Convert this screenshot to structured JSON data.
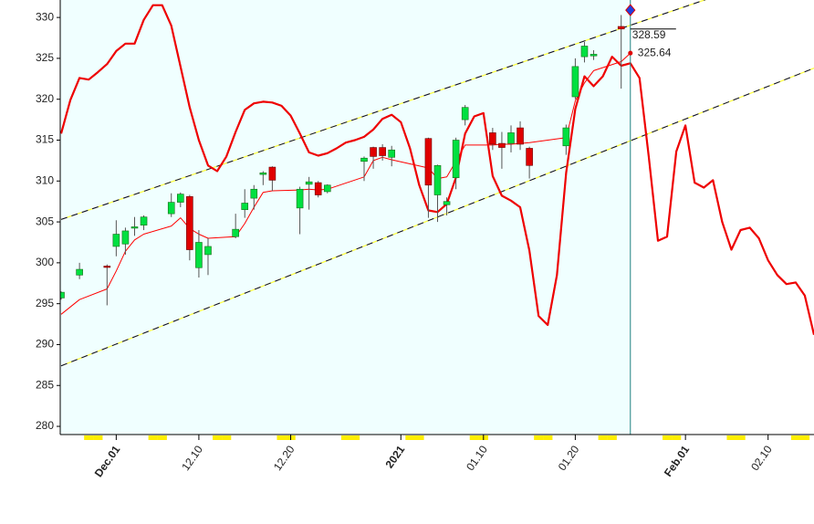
{
  "chart_data": {
    "type": "candlestick",
    "x": [
      "11.25",
      "11.27",
      "11.30",
      "12.01",
      "12.02",
      "12.03",
      "12.04",
      "12.07",
      "12.08",
      "12.09",
      "12.10",
      "12.11",
      "12.14",
      "12.15",
      "12.16",
      "12.17",
      "12.18",
      "12.21",
      "12.22",
      "12.23",
      "12.24",
      "12.28",
      "12.29",
      "12.30",
      "12.31",
      "01.04",
      "01.05",
      "01.06",
      "01.07",
      "01.08",
      "01.11",
      "01.12",
      "01.13",
      "01.14",
      "01.15",
      "01.19",
      "01.20",
      "01.21",
      "01.22",
      "01.25"
    ],
    "open": [
      295.7,
      298.5,
      299.6,
      302,
      302.3,
      304.3,
      304.6,
      306,
      307.4,
      308.1,
      299.4,
      301,
      303.2,
      306.5,
      307.9,
      310.8,
      311.7,
      306.7,
      309.6,
      309.8,
      308.7,
      312.4,
      314.1,
      314.1,
      312.9,
      315.2,
      308.3,
      307.1,
      310.4,
      317.5,
      315.9,
      314.6,
      314.6,
      316.5,
      314,
      314.3,
      320.3,
      325.2,
      325.3,
      328.9
    ],
    "high": [
      296.5,
      300,
      299.8,
      305.2,
      304.3,
      305.6,
      305.8,
      308.5,
      308.6,
      308.3,
      304,
      303,
      306,
      309,
      309.5,
      311.2,
      311.8,
      309.3,
      310.5,
      310,
      309.6,
      313,
      314.2,
      314.5,
      314.3,
      315.3,
      312,
      308,
      315.3,
      319.3,
      316.5,
      316,
      316.8,
      317.3,
      314.2,
      316.9,
      325,
      327,
      326,
      330.3
    ],
    "low": [
      295.5,
      298,
      294.8,
      300.8,
      301,
      303.3,
      304,
      305.6,
      306.8,
      300.3,
      298.2,
      298.5,
      303,
      305.5,
      306.5,
      309.5,
      308.8,
      303.5,
      306.5,
      308,
      308.5,
      310,
      311.5,
      312.5,
      311.8,
      305.5,
      305,
      305.8,
      309,
      316.8,
      313.8,
      311.5,
      313.5,
      313.8,
      310.3,
      313.2,
      320,
      324.5,
      324.8,
      321.3
    ],
    "close": [
      296.4,
      299.2,
      299.5,
      303.5,
      303.9,
      304.4,
      305.6,
      307.4,
      308.4,
      301.6,
      302.5,
      302,
      304.1,
      307.3,
      309,
      311,
      310.1,
      309,
      309.9,
      308.3,
      309.5,
      312.8,
      313,
      313.1,
      313.8,
      309.5,
      311.9,
      307.5,
      315,
      319,
      314.5,
      314.1,
      315.9,
      314.5,
      311.9,
      316.5,
      324,
      326.5,
      325.5,
      328.59
    ],
    "up_color": "#00e040",
    "down_color": "#e00000",
    "lines": [
      {
        "color": "#ff0000",
        "width": 1,
        "x": [
          "11.25",
          "11.27",
          "11.30",
          "12.01",
          "12.02",
          "12.03",
          "12.04",
          "12.07",
          "12.08",
          "12.09",
          "12.10",
          "12.11",
          "12.14",
          "12.15",
          "12.16",
          "12.17",
          "12.18",
          "12.21",
          "12.22",
          "12.23",
          "12.24",
          "12.28",
          "12.29",
          "12.30",
          "12.31",
          "01.04",
          "01.05",
          "01.06",
          "01.07",
          "01.08",
          "01.11",
          "01.12",
          "01.13",
          "01.14",
          "01.15",
          "01.19",
          "01.20",
          "01.21",
          "01.22",
          "01.25",
          "01.26"
        ],
        "values": [
          293.7,
          295.5,
          296.8,
          299,
          301.4,
          302.8,
          303.5,
          304.5,
          305.5,
          304.2,
          303.5,
          303,
          303.2,
          304.8,
          306.8,
          308.6,
          308.8,
          308.9,
          309,
          308.9,
          309,
          310.5,
          312.5,
          312.9,
          312.6,
          311.6,
          310.3,
          310.5,
          312.4,
          314.4,
          314.4,
          314.5,
          314.5,
          314.6,
          314.7,
          315.3,
          319.8,
          322,
          323.5,
          324.6,
          325.64
        ]
      },
      {
        "color": "#ee0000",
        "width": 2.2,
        "x": [
          "11.25",
          "11.26",
          "11.27",
          "11.28",
          "11.29",
          "11.30",
          "12.01",
          "12.02",
          "12.03",
          "12.04",
          "12.05",
          "12.06",
          "12.07",
          "12.08",
          "12.09",
          "12.10",
          "12.11",
          "12.12",
          "12.13",
          "12.14",
          "12.15",
          "12.16",
          "12.17",
          "12.18",
          "12.19",
          "12.20",
          "12.21",
          "12.22",
          "12.23",
          "12.24",
          "12.25",
          "12.26",
          "12.27",
          "12.28",
          "12.29",
          "12.30",
          "12.31",
          "01.01",
          "01.02",
          "01.03",
          "01.04",
          "01.05",
          "01.06",
          "01.07",
          "01.08",
          "01.09",
          "01.10",
          "01.11",
          "01.12",
          "01.13",
          "01.14",
          "01.15",
          "01.16",
          "01.17",
          "01.18",
          "01.19",
          "01.20",
          "01.21",
          "01.22",
          "01.23",
          "01.24",
          "01.25",
          "01.26",
          "01.27",
          "01.28",
          "01.29",
          "01.30",
          "01.31",
          "02.01",
          "02.02",
          "02.03",
          "02.04",
          "02.05",
          "02.06",
          "02.07",
          "02.08",
          "02.09",
          "02.10",
          "02.11",
          "02.12",
          "02.13",
          "02.14",
          "02.15"
        ],
        "values": [
          315.8,
          319.9,
          322.6,
          322.4,
          323.3,
          324.3,
          325.9,
          326.8,
          326.8,
          329.7,
          331.5,
          331.5,
          329,
          324,
          319,
          315,
          311.9,
          311.2,
          313,
          316,
          318.7,
          319.5,
          319.7,
          319.6,
          319.2,
          318,
          315.8,
          313.5,
          313.1,
          313.4,
          314,
          314.7,
          315,
          315.4,
          316.3,
          317.6,
          318.1,
          317.2,
          314,
          309.5,
          306.4,
          306.2,
          307.2,
          310.4,
          315.8,
          317.9,
          318.3,
          310.6,
          308.2,
          307.6,
          306.8,
          301.5,
          293.5,
          292.4,
          298.5,
          311,
          318.8,
          322.8,
          321.6,
          322.8,
          325.2,
          324.1,
          324.4,
          322.6,
          313,
          302.7,
          303.2,
          313.6,
          316.8,
          309.8,
          309.2,
          310.1,
          305,
          301.6,
          304,
          304.3,
          303,
          300.3,
          298.5,
          297.4,
          297.6,
          296,
          291.2
        ]
      }
    ],
    "trendlines": [
      {
        "x": [
          "11.25",
          "02.15"
        ],
        "values": [
          305.3,
          336.7
        ]
      },
      {
        "x": [
          "11.25",
          "02.15"
        ],
        "values": [
          287.4,
          323.8
        ]
      }
    ],
    "cursor": {
      "x": "01.26",
      "marker": 330.9
    },
    "annotations": [
      328.59,
      325.64
    ],
    "xlim": [
      "11.25",
      "02.15"
    ],
    "xticks": [
      {
        "value": "12.01",
        "label": "Dec.01",
        "emphasis": true
      },
      {
        "value": "12.10",
        "label": "12.10"
      },
      {
        "value": "12.20",
        "label": "12.20"
      },
      {
        "value": "01.01",
        "label": "2021",
        "emphasis": true
      },
      {
        "value": "01.10",
        "label": "01.10"
      },
      {
        "value": "01.20",
        "label": "01.20"
      },
      {
        "value": "02.01",
        "label": "Feb.01",
        "emphasis": true
      },
      {
        "value": "02.10",
        "label": "02.10"
      }
    ],
    "ylim": [
      279,
      331.8
    ],
    "yticks": [
      280,
      285,
      290,
      295,
      300,
      305,
      310,
      315,
      320,
      325,
      330
    ]
  }
}
